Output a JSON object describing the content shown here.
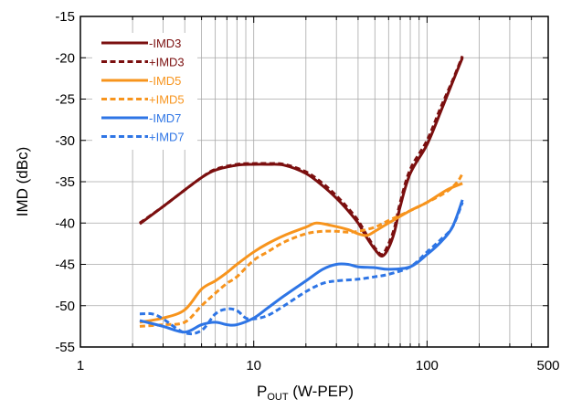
{
  "chart_data": {
    "type": "line",
    "xscale": "log",
    "xlim": [
      1,
      500
    ],
    "ylim": [
      -55,
      -15
    ],
    "xticks": [
      1,
      10,
      100,
      500
    ],
    "xtick_labels": [
      "1",
      "10",
      "100",
      "500"
    ],
    "yticks": [
      -55,
      -50,
      -45,
      -40,
      -35,
      -30,
      -25,
      -20,
      -15
    ],
    "ytick_labels": [
      "-55",
      "-50",
      "-45",
      "-40",
      "-35",
      "-30",
      "-25",
      "-20",
      "-15"
    ],
    "ylabel": "IMD (dBc)",
    "xlabel": {
      "base": "P",
      "sub": "OUT",
      "rest": " (W-PEP)"
    },
    "grid": true,
    "legend_position": "top-left",
    "series": [
      {
        "name": "-IMD3",
        "color": "#7b0f0f",
        "dash": "solid",
        "points": [
          [
            2.2,
            -40.1
          ],
          [
            3,
            -38
          ],
          [
            4,
            -36
          ],
          [
            5,
            -34.5
          ],
          [
            6,
            -33.6
          ],
          [
            8,
            -33
          ],
          [
            10,
            -32.9
          ],
          [
            12,
            -32.9
          ],
          [
            15,
            -33
          ],
          [
            20,
            -34
          ],
          [
            25,
            -35.5
          ],
          [
            30,
            -37
          ],
          [
            35,
            -38.5
          ],
          [
            40,
            -40
          ],
          [
            45,
            -41.8
          ],
          [
            50,
            -43.2
          ],
          [
            55,
            -44
          ],
          [
            60,
            -43
          ],
          [
            65,
            -41
          ],
          [
            70,
            -38
          ],
          [
            80,
            -34
          ],
          [
            100,
            -30.5
          ],
          [
            120,
            -26.5
          ],
          [
            140,
            -23
          ],
          [
            160,
            -20
          ]
        ]
      },
      {
        "name": "+IMD3",
        "color": "#7b0f0f",
        "dash": "dashed",
        "points": [
          [
            2.2,
            -40
          ],
          [
            3,
            -38
          ],
          [
            4,
            -36
          ],
          [
            5,
            -34.5
          ],
          [
            6,
            -33.5
          ],
          [
            8,
            -32.9
          ],
          [
            10,
            -32.8
          ],
          [
            12,
            -32.8
          ],
          [
            15,
            -32.9
          ],
          [
            20,
            -33.8
          ],
          [
            25,
            -35.2
          ],
          [
            30,
            -36.7
          ],
          [
            35,
            -38.2
          ],
          [
            40,
            -39.7
          ],
          [
            45,
            -41.5
          ],
          [
            50,
            -43
          ],
          [
            55,
            -43.8
          ],
          [
            60,
            -42.5
          ],
          [
            65,
            -40.5
          ],
          [
            70,
            -37.5
          ],
          [
            80,
            -33.5
          ],
          [
            100,
            -30
          ],
          [
            120,
            -26
          ],
          [
            140,
            -22.8
          ],
          [
            160,
            -19.8
          ]
        ]
      },
      {
        "name": "-IMD5",
        "color": "#f7941d",
        "dash": "solid",
        "points": [
          [
            2.2,
            -52
          ],
          [
            3,
            -51.5
          ],
          [
            4,
            -50.5
          ],
          [
            5,
            -48
          ],
          [
            6,
            -47
          ],
          [
            7,
            -46
          ],
          [
            8,
            -45
          ],
          [
            10,
            -43.5
          ],
          [
            12,
            -42.5
          ],
          [
            15,
            -41.5
          ],
          [
            20,
            -40.5
          ],
          [
            23,
            -40
          ],
          [
            28,
            -40.3
          ],
          [
            35,
            -40.8
          ],
          [
            40,
            -41.3
          ],
          [
            45,
            -41.5
          ],
          [
            50,
            -41
          ],
          [
            60,
            -40
          ],
          [
            80,
            -38.5
          ],
          [
            100,
            -37.5
          ],
          [
            130,
            -36
          ],
          [
            160,
            -35.2
          ]
        ]
      },
      {
        "name": "+IMD5",
        "color": "#f7941d",
        "dash": "dashed",
        "points": [
          [
            2.2,
            -52.5
          ],
          [
            3,
            -52.3
          ],
          [
            4,
            -52
          ],
          [
            5,
            -50
          ],
          [
            6,
            -48.5
          ],
          [
            7,
            -47.3
          ],
          [
            8,
            -46.5
          ],
          [
            10,
            -44.5
          ],
          [
            12,
            -43.5
          ],
          [
            15,
            -42.3
          ],
          [
            20,
            -41.3
          ],
          [
            25,
            -41
          ],
          [
            30,
            -41
          ],
          [
            35,
            -41.1
          ],
          [
            40,
            -41
          ],
          [
            50,
            -40.5
          ],
          [
            60,
            -39.7
          ],
          [
            80,
            -38.5
          ],
          [
            100,
            -37.5
          ],
          [
            130,
            -36.2
          ],
          [
            150,
            -35
          ],
          [
            160,
            -34
          ]
        ]
      },
      {
        "name": "-IMD7",
        "color": "#2e75e5",
        "dash": "solid",
        "points": [
          [
            2.2,
            -51.8
          ],
          [
            3,
            -52.5
          ],
          [
            4,
            -53.2
          ],
          [
            5,
            -52.3
          ],
          [
            6,
            -52
          ],
          [
            7,
            -52.3
          ],
          [
            8,
            -52.3
          ],
          [
            10,
            -51.5
          ],
          [
            12,
            -50.3
          ],
          [
            15,
            -48.8
          ],
          [
            20,
            -47
          ],
          [
            25,
            -45.6
          ],
          [
            30,
            -45
          ],
          [
            35,
            -45
          ],
          [
            40,
            -45.3
          ],
          [
            50,
            -45.4
          ],
          [
            60,
            -45.6
          ],
          [
            80,
            -45.3
          ],
          [
            100,
            -43.8
          ],
          [
            120,
            -42.3
          ],
          [
            140,
            -40.5
          ],
          [
            160,
            -37.2
          ]
        ]
      },
      {
        "name": "+IMD7",
        "color": "#2e75e5",
        "dash": "dashed",
        "points": [
          [
            2.2,
            -51
          ],
          [
            2.6,
            -51
          ],
          [
            3,
            -51.6
          ],
          [
            4,
            -53.3
          ],
          [
            5,
            -53
          ],
          [
            6,
            -51
          ],
          [
            7,
            -50.4
          ],
          [
            8,
            -50.6
          ],
          [
            9,
            -51.5
          ],
          [
            10,
            -51.6
          ],
          [
            12,
            -51.2
          ],
          [
            15,
            -50
          ],
          [
            20,
            -48.3
          ],
          [
            25,
            -47.3
          ],
          [
            30,
            -47
          ],
          [
            40,
            -46.8
          ],
          [
            50,
            -46.5
          ],
          [
            60,
            -46.2
          ],
          [
            80,
            -45.3
          ],
          [
            100,
            -43.5
          ],
          [
            120,
            -42
          ],
          [
            140,
            -40.5
          ],
          [
            160,
            -37.5
          ]
        ]
      }
    ]
  }
}
